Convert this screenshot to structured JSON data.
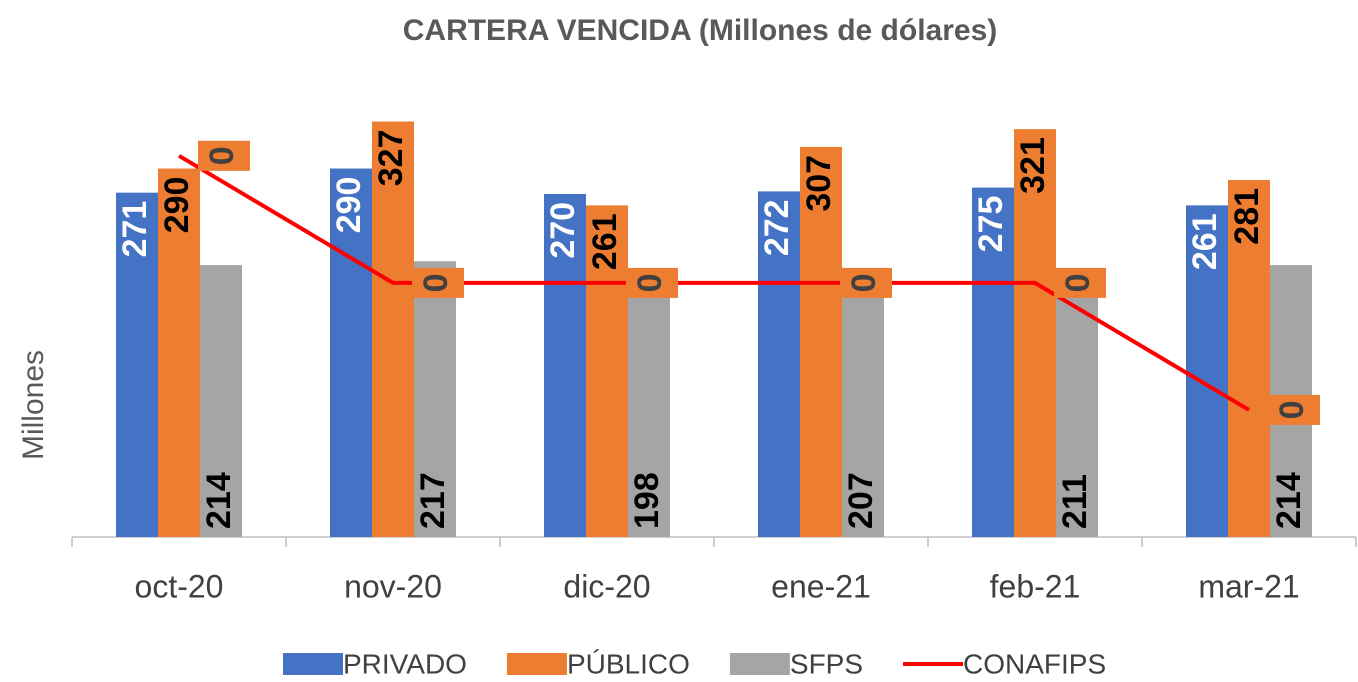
{
  "chart_data": {
    "type": "bar",
    "title": "CARTERA VENCIDA (Millones de dólares)",
    "ylabel": "Millones",
    "categories": [
      "oct-20",
      "nov-20",
      "dic-20",
      "ene-21",
      "feb-21",
      "mar-21"
    ],
    "ylim": [
      0,
      340
    ],
    "y2lim": [
      0,
      0.34
    ],
    "legend": "bottom",
    "series": [
      {
        "name": "PRIVADO",
        "type": "bar",
        "color": "#4472c4",
        "values": [
          271,
          290,
          270,
          272,
          275,
          261
        ]
      },
      {
        "name": "PÚBLICO",
        "type": "bar",
        "color": "#ed7d31",
        "values": [
          290,
          327,
          261,
          307,
          321,
          281
        ]
      },
      {
        "name": "SFPS",
        "type": "bar",
        "color": "#a5a5a5",
        "values": [
          214,
          217,
          198,
          207,
          211,
          214
        ]
      },
      {
        "name": "CONAFIPS",
        "type": "line",
        "axis": "y2",
        "color": "#ff0000",
        "values": [
          0.3,
          0.2,
          0.2,
          0.2,
          0.2,
          0.1
        ],
        "value_labels": [
          "0",
          "0",
          "0",
          "0",
          "0",
          "0"
        ]
      }
    ]
  }
}
